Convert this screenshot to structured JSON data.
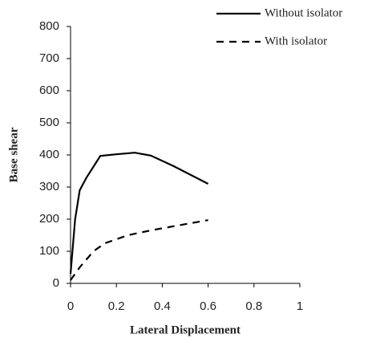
{
  "chart_data": {
    "type": "line",
    "x_label": "Lateral Displacement",
    "y_label": "Base shear",
    "xlim": [
      0,
      1
    ],
    "xticks": [
      0,
      0.2,
      0.4,
      0.6,
      0.8,
      1
    ],
    "ylim": [
      0,
      800
    ],
    "yticks": [
      0,
      100,
      200,
      300,
      400,
      500,
      600,
      700,
      800
    ],
    "grid": false,
    "legend": "top-right",
    "series": [
      {
        "name": "Without isolator",
        "color": "#000000",
        "linestyle": "solid",
        "x": [
          0,
          0.02,
          0.04,
          0.07,
          0.13,
          0.2,
          0.28,
          0.35,
          0.45,
          0.6
        ],
        "values": [
          30,
          200,
          290,
          330,
          397,
          402,
          407,
          398,
          365,
          310
        ]
      },
      {
        "name": "With isolator",
        "color": "#000000",
        "linestyle": "dashed",
        "x": [
          0,
          0.04,
          0.1,
          0.15,
          0.25,
          0.35,
          0.45,
          0.6
        ],
        "values": [
          10,
          50,
          100,
          125,
          150,
          165,
          178,
          197
        ]
      }
    ]
  }
}
